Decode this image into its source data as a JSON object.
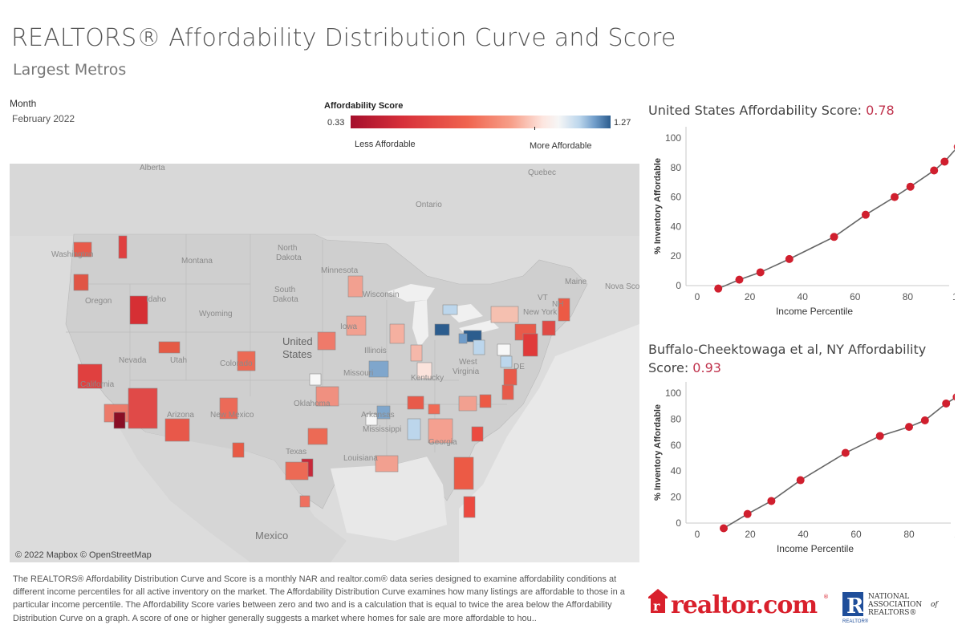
{
  "header": {
    "title": "REALTORS® Affordability Distribution Curve and Score",
    "subtitle": "Largest Metros"
  },
  "filter": {
    "label": "Month",
    "value": "February 2022"
  },
  "legend": {
    "title": "Affordability Score",
    "min": "0.33",
    "max": "1.27",
    "less_label": "Less Affordable",
    "more_label": "More Affordable",
    "colors": [
      "#a50f2c",
      "#f0644f",
      "#f6f6f6",
      "#2c5d8e"
    ]
  },
  "map": {
    "credit": "© 2022 Mapbox © OpenStreetMap",
    "place_labels": [
      "Alberta",
      "Quebec",
      "Ontario",
      "North Dakota",
      "Montana",
      "Washington",
      "Minnesota",
      "South Dakota",
      "Wisconsin",
      "Oregon",
      "Idaho",
      "Wyoming",
      "Maine",
      "Nova Sco..",
      "VT",
      "NH",
      "New York",
      "Iowa",
      "Nevada",
      "Utah",
      "Colorado",
      "United States",
      "Illinois",
      "Missouri",
      "Kentucky",
      "West Virginia",
      "California",
      "Arizona",
      "New Mexico",
      "Oklahoma",
      "Arkansas",
      "Mississippi",
      "Georgia",
      "Texas",
      "Louisiana",
      "Mexico",
      "DE"
    ]
  },
  "chart_data": [
    {
      "type": "line",
      "title": "United States Affordability Score:",
      "score": "0.78",
      "xlabel": "Income Percentile",
      "ylabel": "% Inventory Affordable",
      "xlim": [
        0,
        100
      ],
      "ylim": [
        0,
        100
      ],
      "x_ticks": [
        "0",
        "20",
        "40",
        "60",
        "80",
        "100"
      ],
      "y_ticks": [
        "0",
        "20",
        "40",
        "60",
        "80",
        "100"
      ],
      "x": [
        8,
        16,
        24,
        35,
        52,
        64,
        75,
        81,
        90,
        94,
        99
      ],
      "y": [
        -2,
        4,
        9,
        18,
        33,
        48,
        60,
        67,
        78,
        84,
        94
      ]
    },
    {
      "type": "line",
      "title": "Buffalo-Cheektowaga et al, NY Affordability Score:",
      "score": "0.93",
      "xlabel": "Income Percentile",
      "ylabel": "% Inventory Affordable",
      "xlim": [
        0,
        100
      ],
      "ylim": [
        0,
        100
      ],
      "x_ticks": [
        "0",
        "20",
        "40",
        "60",
        "80",
        "100"
      ],
      "y_ticks": [
        "0",
        "20",
        "40",
        "60",
        "80",
        "100"
      ],
      "x": [
        10,
        19,
        28,
        39,
        56,
        69,
        80,
        86,
        94,
        98,
        100
      ],
      "y": [
        -4,
        7,
        17,
        33,
        54,
        67,
        74,
        79,
        92,
        97,
        99
      ]
    }
  ],
  "footer": {
    "description": "The REALTORS® Affordability Distribution Curve and Score is a monthly NAR and realtor.com® data series designed to examine affordability conditions at different income percentiles for all active inventory on the market. The Affordability Distribution Curve examines how many listings are affordable to those in a particular income percentile. The Affordability Score varies between zero and two and is a calculation that is equal to twice the area below the Affordability Distribution Curve on a graph. A score of one or higher generally suggests a market where homes for sale are more affordable to hou..",
    "logo_realtor": "realtor.com",
    "logo_realtor_mark": "®",
    "logo_nar_line1": "NATIONAL",
    "logo_nar_line2": "ASSOCIATION",
    "logo_nar_of": "of",
    "logo_nar_line3": "REALTORS®",
    "logo_nar_badge": "REALTOR®"
  }
}
